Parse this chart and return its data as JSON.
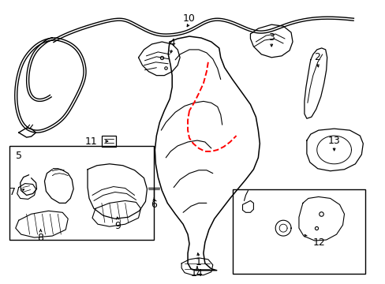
{
  "background_color": "#ffffff",
  "line_color": "#000000",
  "dashed_color": "#ff0000",
  "figure_width": 4.89,
  "figure_height": 3.6,
  "dpi": 100
}
